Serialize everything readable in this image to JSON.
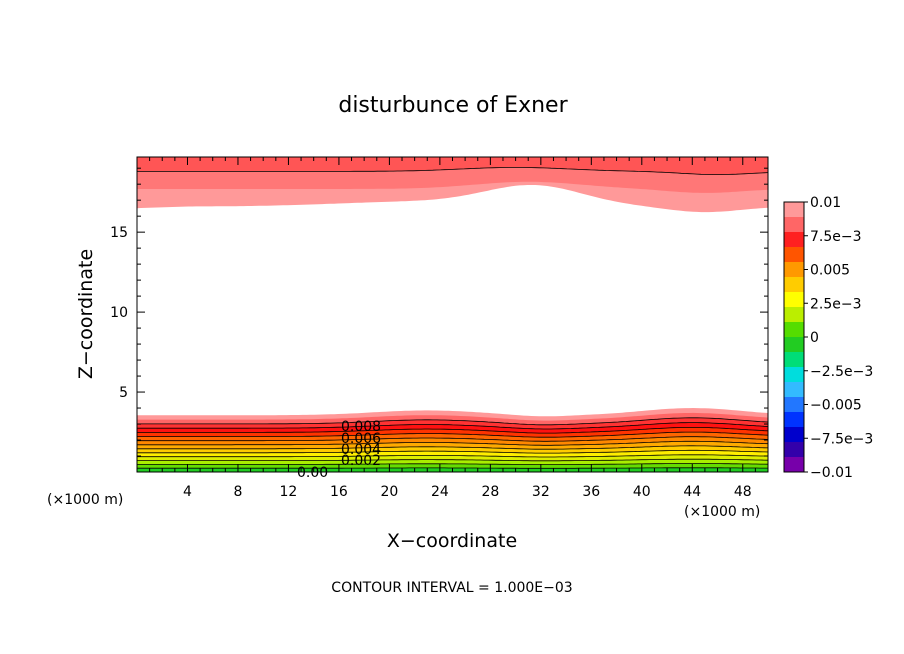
{
  "chart_data": {
    "type": "contour",
    "title": "disturbunce of Exner",
    "xlabel": "X−coordinate",
    "ylabel": "Z−coordinate",
    "x_unit_note_left": "(×1000 m)",
    "x_unit_note_right": "(×1000 m)",
    "xlim": [
      0,
      50
    ],
    "ylim": [
      0,
      19.7
    ],
    "x_ticks": [
      4,
      8,
      12,
      16,
      20,
      24,
      28,
      32,
      36,
      40,
      44,
      48
    ],
    "y_ticks": [
      5,
      10,
      15
    ],
    "footer": "CONTOUR INTERVAL = 1.000E−03",
    "contour_labels": [
      "0.008",
      "0.006",
      "0.004",
      "0.002",
      "0.00"
    ],
    "colorbar": {
      "tick_labels": [
        "0.01",
        "7.5e−3",
        "0.005",
        "2.5e−3",
        "0",
        "−2.5e−3",
        "−0.005",
        "−7.5e−3",
        "−0.01"
      ],
      "colors": [
        "#ff9999",
        "#ff6666",
        "#ff2020",
        "#ff5500",
        "#ff9900",
        "#ffcc00",
        "#ffff00",
        "#bbee00",
        "#55dd00",
        "#22cc22",
        "#00dd77",
        "#00dddd",
        "#33bbff",
        "#2277ff",
        "#0033ff",
        "#0000cc",
        "#3300aa",
        "#7700aa"
      ]
    },
    "bottom_bands": {
      "colors": [
        "#22cc22",
        "#66dd00",
        "#aaee00",
        "#ddee00",
        "#ffee00",
        "#ffcc00",
        "#ffaa00",
        "#ff8800",
        "#ff6600",
        "#ff3300",
        "#ff1111",
        "#ff3333",
        "#ff6666",
        "#ff9999"
      ]
    },
    "top_bands": {
      "colors": [
        "#ff9999",
        "#ff7777",
        "#ff5555"
      ]
    }
  }
}
